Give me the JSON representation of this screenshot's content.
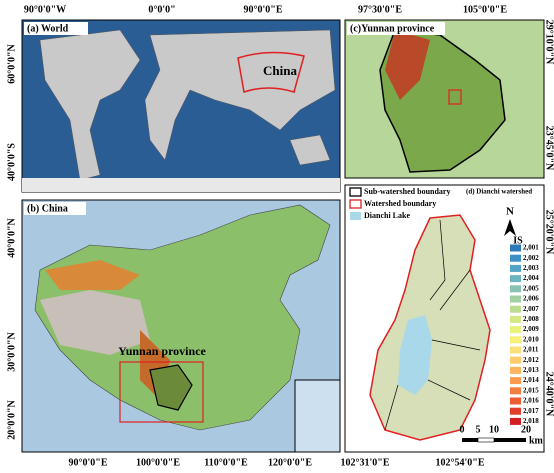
{
  "panel_a": {
    "title": "(a) World",
    "top_labels": [
      "90°0'0\"W",
      "0°0'0\"",
      "90°0'0\"E"
    ],
    "left_labels": [
      "60°0'0\"N",
      "40°0'0\"S"
    ],
    "highlight": "China"
  },
  "panel_b": {
    "title": "(b) China",
    "left_labels": [
      "40°0'0\"N",
      "30°0'0\"N",
      "20°0'0\"N"
    ],
    "bottom_labels": [
      "90°0'0\"E",
      "100°0'0\"E",
      "110°0'0\"E",
      "120°0'0\"E"
    ],
    "highlight": "Yunnan province"
  },
  "panel_c": {
    "title": "(c)Yunnan province",
    "top_labels": [
      "97°30'0\"E",
      "105°0'0\"E"
    ],
    "right_labels": [
      "29°10'0\"N",
      "23°45'0\"N"
    ]
  },
  "panel_d": {
    "title": "(d) Dianchi watershed",
    "legend": [
      "Sub-watershed boundary",
      "Watershed boundary",
      "Dianchi Lake"
    ],
    "north": "N",
    "is_title": "IS",
    "is_items": [
      {
        "label": "2,001",
        "color": "#2b7bba"
      },
      {
        "label": "2,002",
        "color": "#3d8fc4"
      },
      {
        "label": "2,003",
        "color": "#52a3c6"
      },
      {
        "label": "2,004",
        "color": "#6cb4bf"
      },
      {
        "label": "2,005",
        "color": "#88c2b0"
      },
      {
        "label": "2,006",
        "color": "#a2cfa1"
      },
      {
        "label": "2,007",
        "color": "#bcdc92"
      },
      {
        "label": "2,008",
        "color": "#d4e884"
      },
      {
        "label": "2,009",
        "color": "#e9f27a"
      },
      {
        "label": "2,010",
        "color": "#f7f07a"
      },
      {
        "label": "2,011",
        "color": "#fbe07a"
      },
      {
        "label": "2,012",
        "color": "#fccb6c"
      },
      {
        "label": "2,013",
        "color": "#fcb45c"
      },
      {
        "label": "2,014",
        "color": "#f99a4e"
      },
      {
        "label": "2,015",
        "color": "#f47d40"
      },
      {
        "label": "2,016",
        "color": "#ec5d34"
      },
      {
        "label": "2,017",
        "color": "#e23c2a"
      },
      {
        "label": "2,018",
        "color": "#d41f22"
      }
    ],
    "scale_labels": [
      "0",
      "5",
      "10",
      "20"
    ],
    "scale_unit": "km",
    "bottom_labels": [
      "102°31'0\"E",
      "102°54'0\"E"
    ],
    "right_labels": [
      "25°20'0\"N",
      "24°40'0\"N"
    ]
  }
}
